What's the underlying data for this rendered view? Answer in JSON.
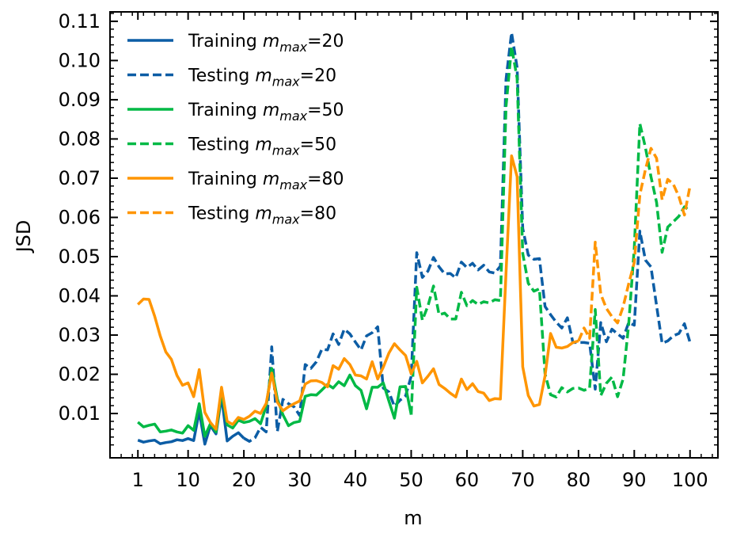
{
  "chart_data": {
    "type": "line",
    "title": "",
    "xlabel": "m",
    "ylabel": "JSD",
    "xlim": [
      -4,
      105
    ],
    "ylim": [
      -0.0013,
      0.1124
    ],
    "x_ticks": [
      1,
      10,
      20,
      30,
      40,
      50,
      60,
      70,
      80,
      90,
      100
    ],
    "y_ticks": [
      0.01,
      0.02,
      0.03,
      0.04,
      0.05,
      0.06,
      0.07,
      0.08,
      0.09,
      0.1,
      0.11
    ],
    "y_tick_labels": [
      "0.01",
      "0.02",
      "0.03",
      "0.04",
      "0.05",
      "0.06",
      "0.07",
      "0.08",
      "0.09",
      "0.10",
      "0.11"
    ],
    "grid": false,
    "legend_position": "top-left",
    "series": [
      {
        "name_prefix": "Training ",
        "name_sub": "max",
        "name_suffix": "=20",
        "color": "#0C5DA5",
        "dash": "solid",
        "x": [
          1,
          2,
          3,
          4,
          5,
          6,
          7,
          8,
          9,
          10,
          11,
          12,
          13,
          14,
          15,
          16,
          17,
          18,
          19,
          20
        ],
        "y": [
          0.0032,
          0.0027,
          0.003,
          0.0032,
          0.0023,
          0.0026,
          0.0028,
          0.0033,
          0.0031,
          0.0036,
          0.0031,
          0.0105,
          0.0022,
          0.0069,
          0.0048,
          0.0143,
          0.003,
          0.0042,
          0.0051,
          0.0037
        ]
      },
      {
        "name_prefix": "Testing ",
        "name_sub": "max",
        "name_suffix": "=20",
        "color": "#0C5DA5",
        "dash": "dashed",
        "x": [
          20,
          21,
          22,
          23,
          24,
          25,
          26,
          27,
          28,
          29,
          30,
          31,
          32,
          33,
          34,
          35,
          36,
          37,
          38,
          39,
          40,
          41,
          42,
          43,
          44,
          45,
          46,
          47,
          48,
          49,
          50,
          51,
          52,
          53,
          54,
          55,
          56,
          57,
          58,
          59,
          60,
          61,
          62,
          63,
          64,
          65,
          66,
          67,
          68,
          69,
          70,
          71,
          72,
          73,
          74,
          75,
          76,
          77,
          78,
          79,
          80,
          81,
          82,
          83,
          84,
          85,
          86,
          87,
          88,
          89,
          90,
          91,
          92,
          93,
          94,
          95,
          96,
          97,
          98,
          99,
          100
        ],
        "y": [
          0.0037,
          0.0029,
          0.0038,
          0.0065,
          0.0053,
          0.027,
          0.0054,
          0.0136,
          0.0125,
          0.0117,
          0.0095,
          0.0225,
          0.0215,
          0.0232,
          0.0264,
          0.0262,
          0.0303,
          0.0276,
          0.0315,
          0.0303,
          0.0282,
          0.0262,
          0.0298,
          0.0306,
          0.0321,
          0.0165,
          0.0155,
          0.0118,
          0.0134,
          0.0145,
          0.0195,
          0.051,
          0.0447,
          0.0463,
          0.0498,
          0.0474,
          0.0456,
          0.0457,
          0.0446,
          0.0486,
          0.0472,
          0.0483,
          0.0466,
          0.0478,
          0.0461,
          0.0458,
          0.0476,
          0.0952,
          0.1071,
          0.0982,
          0.0572,
          0.0504,
          0.0493,
          0.0495,
          0.0373,
          0.0352,
          0.0333,
          0.0318,
          0.0344,
          0.0281,
          0.0281,
          0.0281,
          0.0279,
          0.0162,
          0.0332,
          0.0283,
          0.0315,
          0.0303,
          0.0292,
          0.0332,
          0.0325,
          0.0565,
          0.0491,
          0.0474,
          0.0375,
          0.0279,
          0.0285,
          0.0298,
          0.0304,
          0.0329,
          0.0281
        ]
      },
      {
        "name_prefix": "Training ",
        "name_sub": "max",
        "name_suffix": "=50",
        "color": "#00B945",
        "dash": "solid",
        "x": [
          1,
          2,
          3,
          4,
          5,
          6,
          7,
          8,
          9,
          10,
          11,
          12,
          13,
          14,
          15,
          16,
          17,
          18,
          19,
          20,
          21,
          22,
          23,
          24,
          25,
          26,
          27,
          28,
          29,
          30,
          31,
          32,
          33,
          34,
          35,
          36,
          37,
          38,
          39,
          40,
          41,
          42,
          43,
          44,
          45,
          46,
          47,
          48,
          49,
          50
        ],
        "y": [
          0.0078,
          0.0066,
          0.007,
          0.0073,
          0.0053,
          0.0055,
          0.0058,
          0.0053,
          0.005,
          0.0069,
          0.0057,
          0.0125,
          0.0042,
          0.0074,
          0.0053,
          0.0155,
          0.0071,
          0.0063,
          0.0083,
          0.0077,
          0.008,
          0.0087,
          0.0074,
          0.0119,
          0.0215,
          0.0137,
          0.0097,
          0.0069,
          0.0077,
          0.008,
          0.0144,
          0.0148,
          0.0147,
          0.016,
          0.0174,
          0.0165,
          0.0181,
          0.0171,
          0.0198,
          0.0171,
          0.0159,
          0.0112,
          0.0167,
          0.0167,
          0.0178,
          0.0132,
          0.0088,
          0.0168,
          0.0169,
          0.0097
        ]
      },
      {
        "name_prefix": "Testing ",
        "name_sub": "max",
        "name_suffix": "=50",
        "color": "#00B945",
        "dash": "dashed",
        "x": [
          50,
          51,
          52,
          53,
          54,
          55,
          56,
          57,
          58,
          59,
          60,
          61,
          62,
          63,
          64,
          65,
          66,
          67,
          68,
          69,
          70,
          71,
          72,
          73,
          74,
          75,
          76,
          77,
          78,
          79,
          80,
          81,
          82,
          83,
          84,
          85,
          86,
          87,
          88,
          89,
          90,
          91,
          92,
          93,
          94,
          95,
          96,
          97,
          98,
          99,
          100
        ],
        "y": [
          0.0097,
          0.0422,
          0.0338,
          0.0374,
          0.0425,
          0.0352,
          0.0356,
          0.0341,
          0.0341,
          0.0409,
          0.0375,
          0.0388,
          0.0378,
          0.0385,
          0.0382,
          0.039,
          0.0388,
          0.0883,
          0.1035,
          0.0955,
          0.0508,
          0.0432,
          0.0412,
          0.0418,
          0.0201,
          0.0148,
          0.0142,
          0.0166,
          0.0155,
          0.0164,
          0.0165,
          0.0159,
          0.0165,
          0.0365,
          0.0146,
          0.0177,
          0.0193,
          0.0143,
          0.0188,
          0.0328,
          0.0521,
          0.0839,
          0.0778,
          0.0704,
          0.0638,
          0.0511,
          0.0575,
          0.0589,
          0.0603,
          0.0627,
          0.0617
        ]
      },
      {
        "name_prefix": "Training ",
        "name_sub": "max",
        "name_suffix": "=80",
        "color": "#FF9500",
        "dash": "solid",
        "x": [
          1,
          2,
          3,
          4,
          5,
          6,
          7,
          8,
          9,
          10,
          11,
          12,
          13,
          14,
          15,
          16,
          17,
          18,
          19,
          20,
          21,
          22,
          23,
          24,
          25,
          26,
          27,
          28,
          29,
          30,
          31,
          32,
          33,
          34,
          35,
          36,
          37,
          38,
          39,
          40,
          41,
          42,
          43,
          44,
          45,
          46,
          47,
          48,
          49,
          50,
          51,
          52,
          53,
          54,
          55,
          56,
          57,
          58,
          59,
          60,
          61,
          62,
          63,
          64,
          65,
          66,
          67,
          68,
          69,
          70,
          71,
          72,
          73,
          74,
          75,
          76,
          77,
          78,
          79,
          80
        ],
        "y": [
          0.0378,
          0.0392,
          0.0391,
          0.0348,
          0.0298,
          0.0257,
          0.0238,
          0.0197,
          0.0172,
          0.0178,
          0.0143,
          0.0212,
          0.0103,
          0.0077,
          0.006,
          0.0167,
          0.008,
          0.0072,
          0.009,
          0.0085,
          0.0093,
          0.0106,
          0.01,
          0.0126,
          0.0203,
          0.0129,
          0.0107,
          0.0117,
          0.0125,
          0.0132,
          0.0175,
          0.0183,
          0.0184,
          0.0179,
          0.0168,
          0.0222,
          0.0213,
          0.024,
          0.0225,
          0.0198,
          0.0196,
          0.0188,
          0.0232,
          0.0188,
          0.0218,
          0.0254,
          0.0278,
          0.0262,
          0.0248,
          0.0201,
          0.0233,
          0.0178,
          0.0195,
          0.0214,
          0.0174,
          0.0164,
          0.0152,
          0.0142,
          0.0188,
          0.0161,
          0.0176,
          0.0156,
          0.0152,
          0.0133,
          0.0138,
          0.0137,
          0.0459,
          0.0757,
          0.0704,
          0.0219,
          0.0146,
          0.0119,
          0.0123,
          0.0196,
          0.0304,
          0.0269,
          0.0267,
          0.0271,
          0.0281,
          0.0285
        ]
      },
      {
        "name_prefix": "Testing ",
        "name_sub": "max",
        "name_suffix": "=80",
        "color": "#FF9500",
        "dash": "dashed",
        "x": [
          80,
          81,
          82,
          83,
          84,
          85,
          86,
          87,
          88,
          89,
          90,
          91,
          92,
          93,
          94,
          95,
          96,
          97,
          98,
          99,
          100
        ],
        "y": [
          0.0285,
          0.0318,
          0.0292,
          0.0537,
          0.0404,
          0.0368,
          0.0347,
          0.0331,
          0.0372,
          0.0431,
          0.0485,
          0.0658,
          0.0722,
          0.0776,
          0.0751,
          0.0645,
          0.0697,
          0.0685,
          0.0653,
          0.0606,
          0.0681
        ]
      }
    ]
  }
}
